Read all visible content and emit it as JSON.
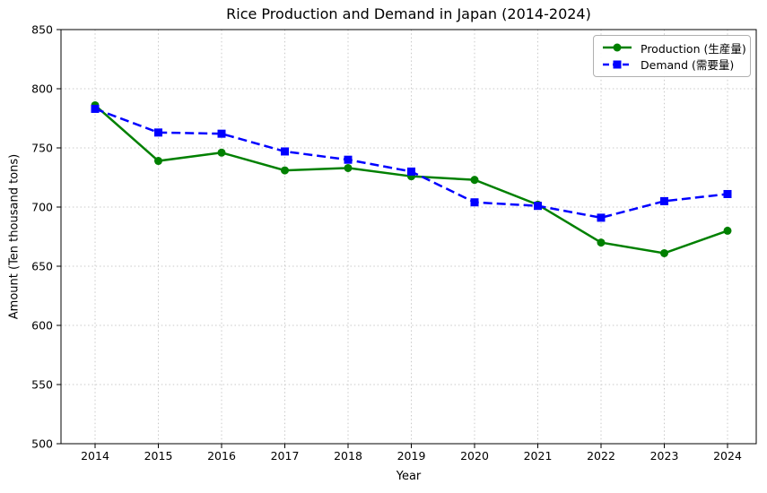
{
  "figure": {
    "title": "Rice Production and Demand in Japan (2014-2024)",
    "xlabel": "Year",
    "ylabel": "Amount (Ten thousand tons)"
  },
  "chart_data": {
    "type": "line",
    "title": "Rice Production and Demand in Japan (2014-2024)",
    "xlabel": "Year",
    "ylabel": "Amount (Ten thousand tons)",
    "x": [
      2014,
      2015,
      2016,
      2017,
      2018,
      2019,
      2020,
      2021,
      2022,
      2023,
      2024
    ],
    "series": [
      {
        "name": "Production (生産量)",
        "values": [
          786,
          739,
          746,
          731,
          733,
          726,
          723,
          702,
          670,
          661,
          680
        ],
        "color": "#008000",
        "marker": "circle",
        "line_style": "solid"
      },
      {
        "name": "Demand (需要量)",
        "values": [
          783,
          763,
          762,
          747,
          740,
          730,
          704,
          701,
          691,
          705,
          711
        ],
        "color": "#0000ff",
        "marker": "square",
        "line_style": "dashed"
      }
    ],
    "ylim": [
      500,
      850
    ],
    "ytick_step": 50,
    "y_tick_labels": [
      "500",
      "550",
      "600",
      "650",
      "700",
      "750",
      "800",
      "850"
    ],
    "x_tick_labels": [
      "2014",
      "2015",
      "2016",
      "2017",
      "2018",
      "2019",
      "2020",
      "2021",
      "2022",
      "2023",
      "2024"
    ],
    "grid": true,
    "grid_style": "dotted",
    "grid_color": "#c9c9c9",
    "axis_color": "#000000",
    "legend_position": "upper right"
  }
}
